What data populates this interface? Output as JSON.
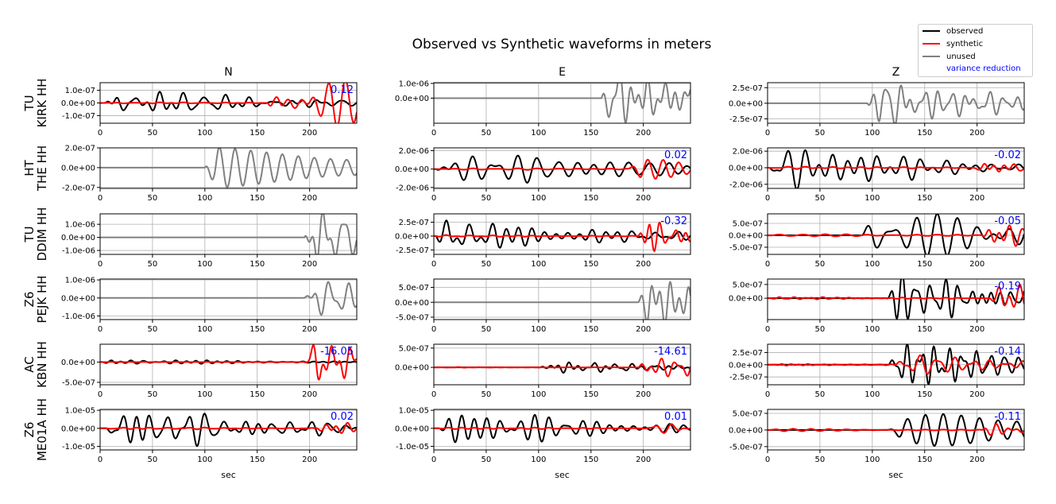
{
  "title": "Observed vs Synthetic waveforms in meters",
  "columns": [
    "N",
    "E",
    "Z"
  ],
  "xlabel": "sec",
  "xticks": [
    "0",
    "50",
    "100",
    "150",
    "200"
  ],
  "legend": [
    {
      "label": "observed",
      "color": "#000000"
    },
    {
      "label": "synthetic",
      "color": "#ff0000"
    },
    {
      "label": "unused",
      "color": "#808080"
    },
    {
      "label": "variance reduction",
      "color": "#0000ff"
    }
  ],
  "chart_data": {
    "type": "line",
    "title": "Observed vs Synthetic waveforms in meters",
    "xlabel": "sec",
    "xlim": [
      0,
      245
    ],
    "grid": true,
    "legend_position": "top-right",
    "stations": [
      {
        "network": "TU",
        "station": "KIRK HH",
        "panels": [
          {
            "component": "N",
            "status": "used",
            "vr": "0.12",
            "ylim": [
              -1.6e-07,
              1.6e-07
            ],
            "yticks": [
              "1.0e-07",
              "0.0e+00",
              "-1.0e-07"
            ],
            "ytick_values": [
              1e-07,
              0,
              -1e-07
            ],
            "obs_amp": 1.1e-07,
            "obs_onset": 5,
            "syn_amp": 1.6e-07,
            "syn_onset": 160,
            "seed": 11
          },
          {
            "component": "E",
            "status": "unused",
            "vr": "",
            "ylim": [
              -1.7e-06,
              1.05e-06
            ],
            "yticks": [
              "1.0e-06",
              "0.0e+00"
            ],
            "ytick_values": [
              1e-06,
              0
            ],
            "obs_amp": 1.5e-06,
            "obs_onset": 160,
            "syn_amp": 0,
            "syn_onset": 0,
            "seed": 12
          },
          {
            "component": "Z",
            "status": "unused",
            "vr": "",
            "ylim": [
              -3.2e-07,
              3.3e-07
            ],
            "yticks": [
              "2.5e-07",
              "0.0e+00",
              "-2.5e-07"
            ],
            "ytick_values": [
              2.5e-07,
              0,
              -2.5e-07
            ],
            "obs_amp": 3.3e-07,
            "obs_onset": 95,
            "syn_amp": 0,
            "syn_onset": 0,
            "seed": 13
          }
        ]
      },
      {
        "network": "HT",
        "station": "THE HH",
        "panels": [
          {
            "component": "N",
            "status": "unused",
            "vr": "",
            "ylim": [
              -2.1e-07,
              2e-07
            ],
            "yticks": [
              "2.0e-07",
              "0.0e+00",
              "-2.0e-07"
            ],
            "ytick_values": [
              2e-07,
              0,
              -2e-07
            ],
            "obs_amp": 2.2e-07,
            "obs_onset": 100,
            "syn_amp": 0,
            "syn_onset": 0,
            "seed": 21
          },
          {
            "component": "E",
            "status": "used",
            "vr": "0.02",
            "ylim": [
              -2.1e-06,
              2.3e-06
            ],
            "yticks": [
              "2.0e-06",
              "0.0e+00",
              "-2.0e-06"
            ],
            "ytick_values": [
              2e-06,
              0,
              -2e-06
            ],
            "obs_amp": 2e-06,
            "obs_onset": 2,
            "syn_amp": 8e-07,
            "syn_onset": 185,
            "seed": 22
          },
          {
            "component": "Z",
            "status": "used",
            "vr": "-0.02",
            "ylim": [
              -2.5e-06,
              2.4e-06
            ],
            "yticks": [
              "2.0e-06",
              "0.0e+00",
              "-2.0e-06"
            ],
            "ytick_values": [
              2e-06,
              0,
              -2e-06
            ],
            "obs_amp": 2.4e-06,
            "obs_onset": 2,
            "syn_amp": 5e-07,
            "syn_onset": 195,
            "seed": 23
          }
        ]
      },
      {
        "network": "TU",
        "station": "DDIM HH",
        "panels": [
          {
            "component": "N",
            "status": "unused",
            "vr": "",
            "ylim": [
              -1.3e-06,
              1.8e-06
            ],
            "yticks": [
              "1.0e-06",
              "0.0e+00",
              "-1.0e-06"
            ],
            "ytick_values": [
              1e-06,
              0,
              -1e-06
            ],
            "obs_amp": 1.7e-06,
            "obs_onset": 195,
            "syn_amp": 0,
            "syn_onset": 0,
            "seed": 31
          },
          {
            "component": "E",
            "status": "used",
            "vr": "-0.32",
            "ylim": [
              -3.3e-07,
              4e-07
            ],
            "yticks": [
              "2.5e-07",
              "0.0e+00",
              "-2.5e-07"
            ],
            "ytick_values": [
              2.5e-07,
              0,
              -2.5e-07
            ],
            "obs_amp": 3.6e-07,
            "obs_onset": 2,
            "syn_amp": 3.6e-07,
            "syn_onset": 195,
            "seed": 32
          },
          {
            "component": "Z",
            "status": "used",
            "vr": "-0.05",
            "ylim": [
              -8e-07,
              9e-07
            ],
            "yticks": [
              "5.0e-07",
              "0.0e+00",
              "-5.0e-07"
            ],
            "ytick_values": [
              5e-07,
              0,
              -5e-07
            ],
            "obs_amp": 8.5e-07,
            "obs_onset": 90,
            "syn_amp": 6e-07,
            "syn_onset": 205,
            "seed": 33
          }
        ]
      },
      {
        "network": "Z6",
        "station": "PEJK HH",
        "panels": [
          {
            "component": "N",
            "status": "unused",
            "vr": "",
            "ylim": [
              -1.2e-06,
              1.05e-06
            ],
            "yticks": [
              "1.0e-06",
              "0.0e+00",
              "-1.0e-06"
            ],
            "ytick_values": [
              1e-06,
              0,
              -1e-06
            ],
            "obs_amp": 1.1e-06,
            "obs_onset": 195,
            "syn_amp": 0,
            "syn_onset": 0,
            "seed": 41
          },
          {
            "component": "E",
            "status": "unused",
            "vr": "",
            "ylim": [
              -5.8e-07,
              7.8e-07
            ],
            "yticks": [
              "5.0e-07",
              "0.0e+00",
              "-5.0e-07"
            ],
            "ytick_values": [
              5e-07,
              0,
              -5e-07
            ],
            "obs_amp": 7e-07,
            "obs_onset": 195,
            "syn_amp": 0,
            "syn_onset": 0,
            "seed": 42
          },
          {
            "component": "Z",
            "status": "used",
            "vr": "-0.19",
            "ylim": [
              -7.8e-07,
              7e-07
            ],
            "yticks": [
              "5.0e-07",
              "0.0e+00"
            ],
            "ytick_values": [
              5e-07,
              0
            ],
            "obs_amp": 7e-07,
            "obs_onset": 110,
            "syn_amp": 4.5e-07,
            "syn_onset": 210,
            "seed": 43
          }
        ]
      },
      {
        "network": "AC",
        "station": "KBN HH",
        "panels": [
          {
            "component": "N",
            "status": "used",
            "vr": "-16.05",
            "ylim": [
              -5.6e-07,
              4.4e-07
            ],
            "yticks": [
              "0.0e+00",
              "-5.0e-07"
            ],
            "ytick_values": [
              0,
              -5e-07
            ],
            "obs_amp": 8e-08,
            "obs_onset": 2,
            "syn_amp": 5.5e-07,
            "syn_onset": 195,
            "seed": 51
          },
          {
            "component": "E",
            "status": "used",
            "vr": "-14.61",
            "ylim": [
              -4.5e-07,
              6e-07
            ],
            "yticks": [
              "5.0e-07",
              "0.0e+00"
            ],
            "ytick_values": [
              5e-07,
              0
            ],
            "obs_amp": 1.5e-07,
            "obs_onset": 100,
            "syn_amp": 5.5e-07,
            "syn_onset": 195,
            "seed": 52
          },
          {
            "component": "Z",
            "status": "used",
            "vr": "-0.14",
            "ylim": [
              -4.1e-07,
              4.2e-07
            ],
            "yticks": [
              "2.5e-07",
              "0.0e+00",
              "-2.5e-07"
            ],
            "ytick_values": [
              2.5e-07,
              0,
              -2.5e-07
            ],
            "obs_amp": 4e-07,
            "obs_onset": 115,
            "syn_amp": 2.5e-07,
            "syn_onset": 120,
            "seed": 53
          }
        ]
      },
      {
        "network": "Z6",
        "station": "ME01A HH",
        "panels": [
          {
            "component": "N",
            "status": "used",
            "vr": "0.02",
            "ylim": [
              -1.2e-05,
              1.05e-05
            ],
            "yticks": [
              "1.0e-05",
              "0.0e+00",
              "-1.0e-05"
            ],
            "ytick_values": [
              1e-05,
              0,
              -1e-05
            ],
            "obs_amp": 1.05e-05,
            "obs_onset": 5,
            "syn_amp": 2.5e-06,
            "syn_onset": 205,
            "seed": 61
          },
          {
            "component": "E",
            "status": "used",
            "vr": "0.01",
            "ylim": [
              -1.2e-05,
              1.05e-05
            ],
            "yticks": [
              "1.0e-05",
              "0.0e+00",
              "-1.0e-05"
            ],
            "ytick_values": [
              1e-05,
              0,
              -1e-05
            ],
            "obs_amp": 1e-05,
            "obs_onset": 5,
            "syn_amp": 2e-06,
            "syn_onset": 200,
            "seed": 62
          },
          {
            "component": "Z",
            "status": "used",
            "vr": "-0.11",
            "ylim": [
              -6e-07,
              6.2e-07
            ],
            "yticks": [
              "5.0e-07",
              "0.0e+00",
              "-5.0e-07"
            ],
            "ytick_values": [
              5e-07,
              0,
              -5e-07
            ],
            "obs_amp": 5.8e-07,
            "obs_onset": 115,
            "syn_amp": 2.8e-07,
            "syn_onset": 205,
            "seed": 63
          }
        ]
      }
    ]
  }
}
